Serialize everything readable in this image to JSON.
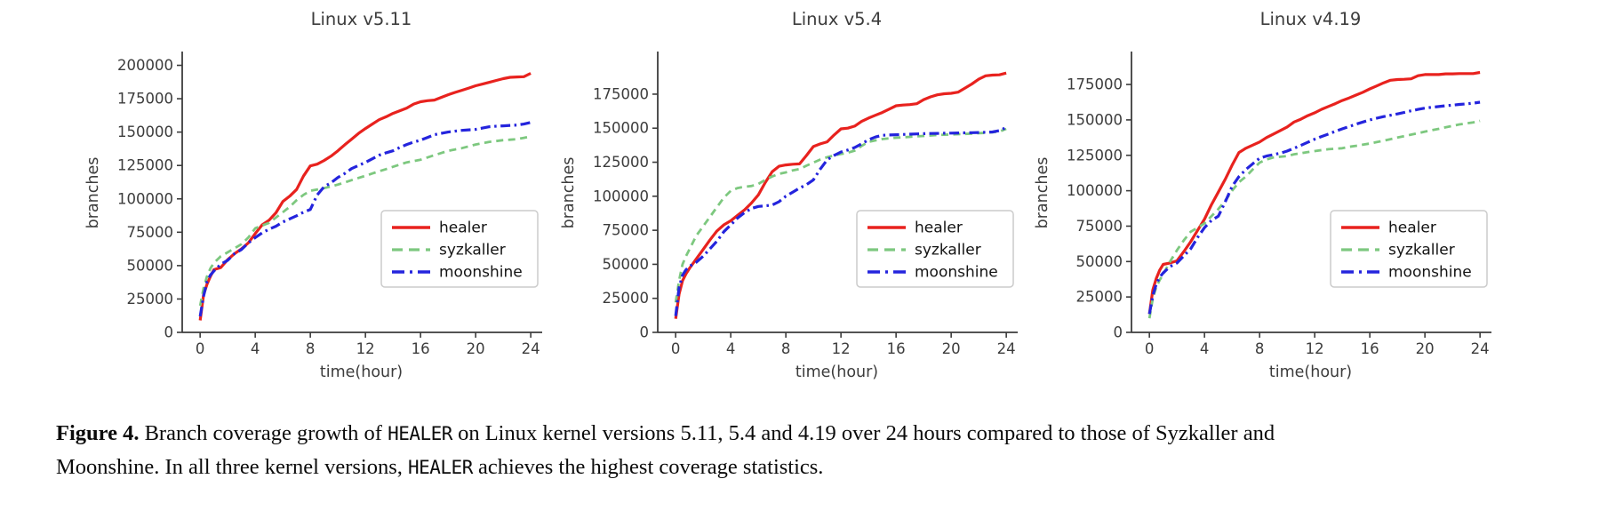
{
  "figure": {
    "caption_segments": [
      {
        "text": "Figure 4.",
        "style": "bold"
      },
      {
        "text": " Branch coverage growth of ",
        "style": "normal"
      },
      {
        "text": "HEALER",
        "style": "mono"
      },
      {
        "text": " on Linux kernel versions 5.11, 5.4 and 4.19 over 24 hours compared to those of Syzkaller and Moonshine. In all three kernel versions, ",
        "style": "normal"
      },
      {
        "text": "HEALER",
        "style": "mono"
      },
      {
        "text": " achieves the highest coverage statistics.",
        "style": "normal"
      }
    ]
  },
  "colors": {
    "healer": "#e8221e",
    "syzkaller": "#7dc87f",
    "moonshine": "#2424dd",
    "axis": "#3c3c3c",
    "legend_border": "#cccccc",
    "background": "#ffffff"
  },
  "chart_data": [
    {
      "type": "line",
      "title": "Linux v5.11",
      "xlabel": "time(hour)",
      "ylabel": "branches",
      "xticks": [
        0,
        4,
        8,
        12,
        16,
        20,
        24
      ],
      "yticks": [
        0,
        25000,
        50000,
        75000,
        100000,
        125000,
        150000,
        175000,
        200000
      ],
      "xlim": [
        -1.3,
        24.7
      ],
      "ylim": [
        0,
        209000
      ],
      "grid": false,
      "legend_position": "lower right",
      "x": [
        0,
        0.25,
        0.5,
        0.75,
        1,
        1.5,
        2,
        2.5,
        3,
        3.5,
        4,
        4.5,
        5,
        5.5,
        6,
        6.5,
        7,
        7.5,
        8,
        8.5,
        9,
        9.5,
        10,
        10.5,
        11,
        11.5,
        12,
        12.5,
        13,
        13.5,
        14,
        14.5,
        15,
        15.5,
        16,
        16.5,
        17,
        17.5,
        18,
        18.5,
        19,
        19.5,
        20,
        20.5,
        21,
        21.5,
        22,
        22.5,
        23,
        23.5,
        24
      ],
      "series": [
        {
          "name": "healer",
          "color": "#e8221e",
          "style": "solid",
          "values": [
            9000,
            28000,
            36000,
            42000,
            47000,
            48500,
            54500,
            59000,
            62500,
            67000,
            74000,
            80500,
            84000,
            89500,
            98000,
            102000,
            107000,
            117000,
            124700,
            126000,
            128700,
            132000,
            136000,
            140500,
            144700,
            149000,
            152700,
            156000,
            159300,
            161500,
            164000,
            166000,
            168000,
            171000,
            172700,
            173500,
            174000,
            176000,
            178000,
            179700,
            181300,
            183000,
            184700,
            186000,
            187300,
            188700,
            190000,
            191000,
            191300,
            191500,
            194000
          ]
        },
        {
          "name": "syzkaller",
          "color": "#7dc87f",
          "style": "dashed",
          "values": [
            20000,
            33000,
            42000,
            48000,
            52000,
            57000,
            60000,
            63000,
            66000,
            71000,
            78000,
            80000,
            82000,
            86000,
            90000,
            94000,
            99000,
            103000,
            106000,
            107000,
            108000,
            109300,
            110700,
            112300,
            114000,
            115700,
            117300,
            119000,
            120700,
            122300,
            124000,
            125700,
            127300,
            128300,
            129300,
            131000,
            132700,
            134300,
            136000,
            137000,
            138000,
            139300,
            140700,
            141700,
            142700,
            143300,
            144000,
            144300,
            144700,
            145700,
            146700
          ]
        },
        {
          "name": "moonshine",
          "color": "#2424dd",
          "style": "dashdot",
          "values": [
            12000,
            27000,
            38000,
            43000,
            46000,
            51000,
            54000,
            59000,
            62000,
            67000,
            71000,
            74500,
            77300,
            79500,
            82700,
            85000,
            87300,
            90000,
            92000,
            103000,
            109000,
            112000,
            116000,
            119000,
            122700,
            125000,
            127300,
            130000,
            132700,
            134500,
            136000,
            138500,
            140700,
            142500,
            144000,
            146000,
            148000,
            149000,
            150000,
            150700,
            151300,
            151700,
            152000,
            153000,
            154000,
            154400,
            154700,
            155000,
            155300,
            156000,
            157300
          ]
        }
      ]
    },
    {
      "type": "line",
      "title": "Linux v5.4",
      "xlabel": "time(hour)",
      "ylabel": "branches",
      "xticks": [
        0,
        4,
        8,
        12,
        16,
        20,
        24
      ],
      "yticks": [
        0,
        25000,
        50000,
        75000,
        100000,
        125000,
        150000,
        175000
      ],
      "xlim": [
        -1.3,
        24.7
      ],
      "ylim": [
        0,
        205000
      ],
      "grid": false,
      "legend_position": "lower right",
      "x": [
        0,
        0.25,
        0.5,
        0.75,
        1,
        1.5,
        2,
        2.5,
        3,
        3.5,
        4,
        4.5,
        5,
        5.5,
        6,
        6.5,
        7,
        7.5,
        8,
        8.5,
        9,
        9.5,
        10,
        10.5,
        11,
        11.5,
        12,
        12.5,
        13,
        13.5,
        14,
        14.5,
        15,
        15.5,
        16,
        16.5,
        17,
        17.5,
        18,
        18.5,
        19,
        19.5,
        20,
        20.5,
        21,
        21.5,
        22,
        22.5,
        23,
        23.5,
        24
      ],
      "series": [
        {
          "name": "healer",
          "color": "#e8221e",
          "style": "solid",
          "values": [
            10000,
            28000,
            38000,
            43000,
            47000,
            54000,
            61000,
            68000,
            74500,
            79000,
            82000,
            86000,
            90000,
            95000,
            101000,
            110000,
            118000,
            122000,
            123000,
            123500,
            123800,
            130000,
            136500,
            138500,
            140000,
            145000,
            149500,
            150000,
            151500,
            155000,
            157400,
            159500,
            161500,
            164000,
            166500,
            167000,
            167300,
            168000,
            171000,
            173000,
            174500,
            175300,
            175600,
            176500,
            179500,
            182500,
            186000,
            188500,
            189000,
            189200,
            190500
          ]
        },
        {
          "name": "syzkaller",
          "color": "#7dc87f",
          "style": "dashed",
          "values": [
            22000,
            38000,
            50000,
            56000,
            61000,
            71000,
            78000,
            85000,
            92000,
            99000,
            104000,
            106000,
            107000,
            107500,
            109000,
            112000,
            114500,
            116500,
            117500,
            119000,
            120000,
            122500,
            124700,
            127000,
            128700,
            130000,
            131000,
            132000,
            133500,
            137000,
            140000,
            141000,
            142000,
            142500,
            143000,
            143300,
            143600,
            144000,
            144300,
            144600,
            145000,
            145200,
            145400,
            145600,
            145800,
            146000,
            146300,
            146600,
            147000,
            147500,
            149500
          ]
        },
        {
          "name": "moonshine",
          "color": "#2424dd",
          "style": "dashdot",
          "values": [
            12000,
            33000,
            42000,
            46000,
            48500,
            51500,
            56000,
            61500,
            67000,
            74000,
            79000,
            84000,
            88000,
            91000,
            92500,
            93000,
            93500,
            96000,
            100000,
            103000,
            106000,
            108500,
            112000,
            120000,
            126700,
            130000,
            132500,
            134000,
            135800,
            138500,
            141500,
            143500,
            144800,
            145000,
            145200,
            145400,
            145600,
            145800,
            146000,
            146100,
            146200,
            146300,
            146400,
            146500,
            146600,
            146700,
            146800,
            147000,
            147200,
            148200,
            150500
          ]
        }
      ]
    },
    {
      "type": "line",
      "title": "Linux v4.19",
      "xlabel": "time(hour)",
      "ylabel": "branches",
      "xticks": [
        0,
        4,
        8,
        12,
        16,
        20,
        24
      ],
      "yticks": [
        0,
        25000,
        50000,
        75000,
        100000,
        125000,
        150000,
        175000
      ],
      "xlim": [
        -1.3,
        24.7
      ],
      "ylim": [
        0,
        197000
      ],
      "grid": false,
      "legend_position": "lower right",
      "x": [
        0,
        0.25,
        0.5,
        0.75,
        1,
        1.5,
        2,
        2.5,
        3,
        3.5,
        4,
        4.5,
        5,
        5.5,
        6,
        6.5,
        7,
        7.5,
        8,
        8.5,
        9,
        9.5,
        10,
        10.5,
        11,
        11.5,
        12,
        12.5,
        13,
        13.5,
        14,
        14.5,
        15,
        15.5,
        16,
        16.5,
        17,
        17.5,
        18,
        18.5,
        19,
        19.5,
        20,
        20.5,
        21,
        21.5,
        22,
        22.5,
        23,
        23.5,
        24
      ],
      "series": [
        {
          "name": "healer",
          "color": "#e8221e",
          "style": "solid",
          "values": [
            13000,
            30000,
            38000,
            44000,
            48000,
            49000,
            50500,
            57000,
            64000,
            72000,
            80000,
            90000,
            99000,
            108000,
            118000,
            127000,
            130000,
            132200,
            134400,
            137500,
            140000,
            142500,
            145000,
            148500,
            150500,
            153000,
            155000,
            157500,
            159500,
            161500,
            163700,
            165500,
            167500,
            169500,
            171900,
            174000,
            176200,
            178000,
            178500,
            178700,
            179000,
            181200,
            182000,
            182000,
            182000,
            182500,
            182500,
            182700,
            182700,
            182700,
            183500
          ]
        },
        {
          "name": "syzkaller",
          "color": "#7dc87f",
          "style": "dashed",
          "values": [
            10000,
            24000,
            32000,
            37000,
            41000,
            50000,
            58000,
            65000,
            71000,
            74000,
            77000,
            82000,
            87000,
            93000,
            100000,
            106000,
            110000,
            115000,
            119800,
            122000,
            123500,
            124000,
            124500,
            125700,
            126500,
            127300,
            128000,
            128700,
            129300,
            129700,
            130000,
            131000,
            131700,
            132500,
            133300,
            134300,
            135300,
            136400,
            137500,
            138500,
            139600,
            140600,
            141700,
            142700,
            143700,
            144800,
            145800,
            146800,
            147500,
            148200,
            149300
          ]
        },
        {
          "name": "moonshine",
          "color": "#2424dd",
          "style": "dashdot",
          "values": [
            13000,
            26000,
            34000,
            39000,
            42000,
            46500,
            49000,
            54000,
            59000,
            67000,
            74000,
            79000,
            82000,
            92000,
            103000,
            110000,
            115000,
            119000,
            122900,
            124500,
            125500,
            126500,
            128000,
            130000,
            132000,
            134200,
            136400,
            138300,
            140000,
            142000,
            143700,
            145300,
            147000,
            148500,
            150000,
            151200,
            152300,
            153300,
            154200,
            155300,
            156400,
            157400,
            158300,
            158900,
            159400,
            160000,
            160400,
            160900,
            161300,
            161800,
            162500
          ]
        }
      ]
    }
  ]
}
